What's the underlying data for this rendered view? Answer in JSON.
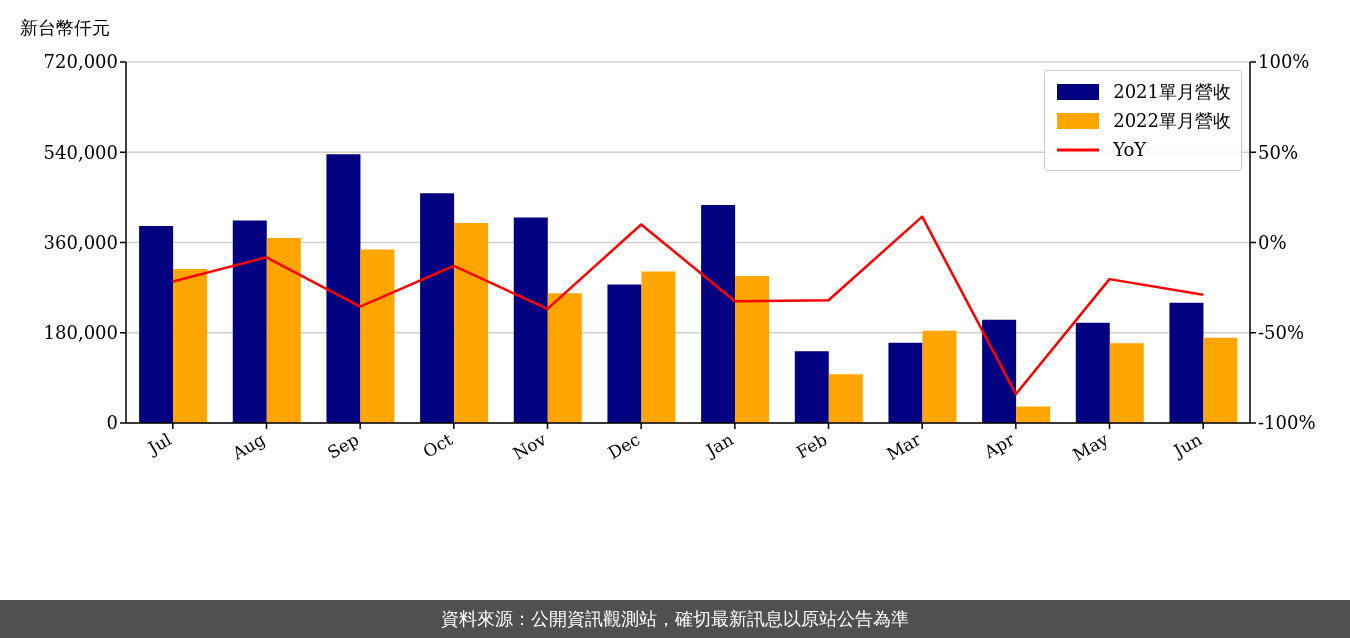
{
  "chart_data": {
    "type": "bar",
    "ylabel": "新台幣仟元",
    "categories": [
      "Jul",
      "Aug",
      "Sep",
      "Oct",
      "Nov",
      "Dec",
      "Jan",
      "Feb",
      "Mar",
      "Apr",
      "May",
      "Jun"
    ],
    "series": [
      {
        "name": "2021單月營收",
        "color": "#000080",
        "values": [
          393000,
          404000,
          536000,
          458000,
          410000,
          276000,
          435000,
          143000,
          160000,
          206000,
          200000,
          240000
        ]
      },
      {
        "name": "2022單月營收",
        "color": "#ffa500",
        "values": [
          307000,
          369000,
          346000,
          399000,
          259000,
          302000,
          293000,
          97000,
          184000,
          33000,
          159000,
          170000
        ]
      },
      {
        "name": "YoY",
        "type": "line",
        "axis": "y2",
        "color": "#ff0000",
        "values": [
          -21.6,
          -8.2,
          -35.5,
          -13,
          -36.8,
          10,
          -32.5,
          -32,
          14.3,
          -84,
          -20.3,
          -29
        ]
      }
    ],
    "ylim": [
      0,
      720000
    ],
    "yticks": [
      {
        "value": 0,
        "label": "0"
      },
      {
        "value": 180000,
        "label": "180,000"
      },
      {
        "value": 360000,
        "label": "360,000"
      },
      {
        "value": 540000,
        "label": "540,000"
      },
      {
        "value": 720000,
        "label": "720,000"
      }
    ],
    "y2lim": [
      -100,
      100
    ],
    "y2ticks": [
      {
        "value": -100,
        "label": "-100%"
      },
      {
        "value": -50,
        "label": "-50%"
      },
      {
        "value": 0,
        "label": "0%"
      },
      {
        "value": 50,
        "label": "50%"
      },
      {
        "value": 100,
        "label": "100%"
      }
    ],
    "grid": "y",
    "legend": "top right",
    "marker": "none",
    "line_style": "solid",
    "annotations": [
      "資料來源：公開資訊觀測站，確切最新訊息以原站公告為準"
    ]
  }
}
